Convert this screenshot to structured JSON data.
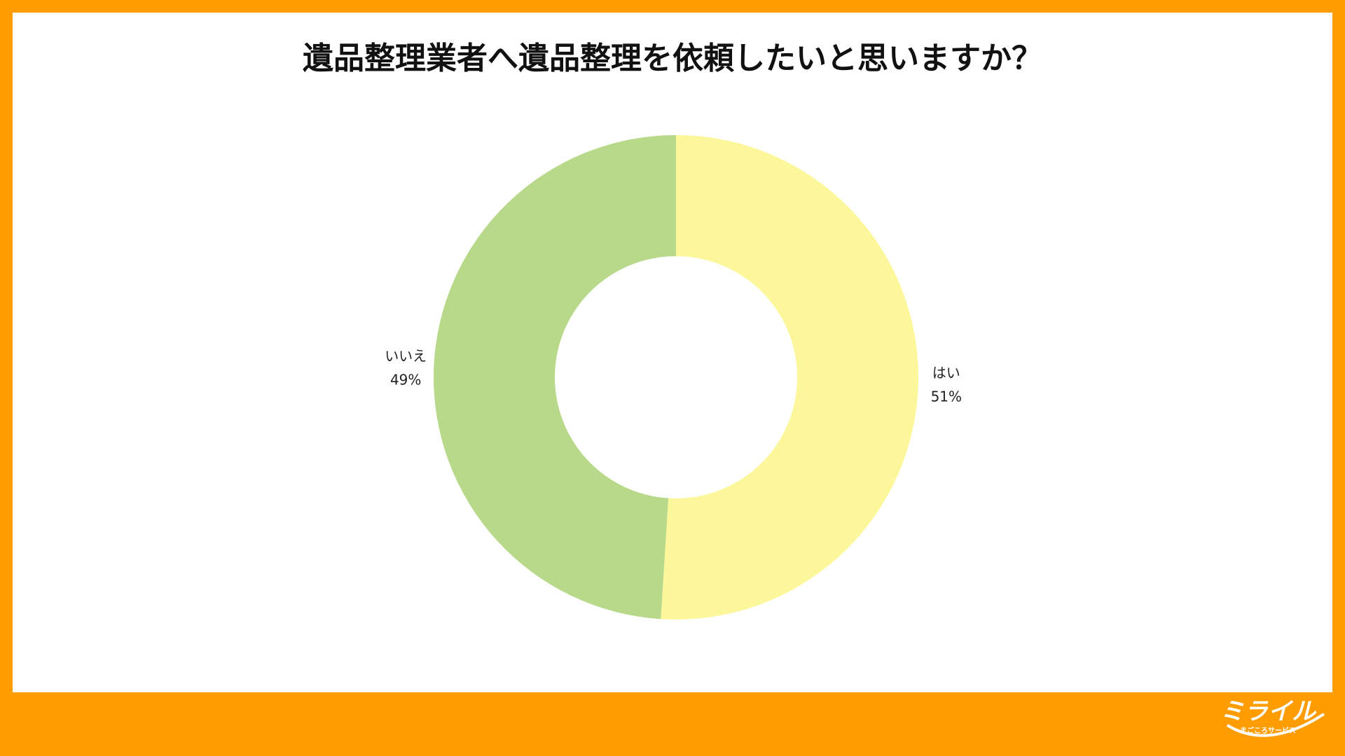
{
  "chart_data": {
    "type": "donut",
    "title": "遺品整理業者へ遺品整理を依頼したいと思いますか？",
    "categories": [
      "はい",
      "いいえ"
    ],
    "values": [
      51,
      49
    ],
    "value_labels": [
      "51%",
      "49%"
    ],
    "colors": [
      "#fdf79b",
      "#b8d98a"
    ]
  },
  "logo": {
    "name": "ミライル",
    "tagline": "まごころサービス"
  }
}
